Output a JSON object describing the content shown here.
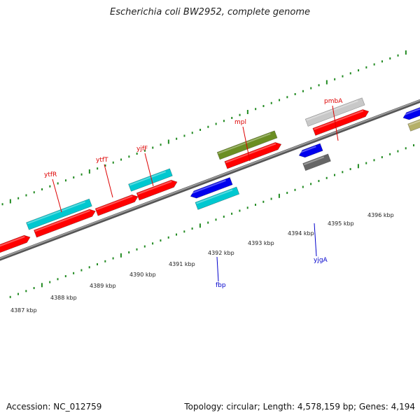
{
  "title": "Escherichia coli BW2952, complete genome",
  "footer": {
    "accession": "Accession: NC_012759",
    "summary": "Topology: circular; Length: 4,578,159 bp; Genes: 4,194"
  },
  "scale_labels": [
    "4387 kbp",
    "4388 kbp",
    "4389 kbp",
    "4390 kbp",
    "4391 kbp",
    "4392 kbp",
    "4393 kbp",
    "4394 kbp",
    "4395 kbp",
    "4396 kbp"
  ],
  "gene_labels": [
    {
      "name": "ytfR",
      "strand": "plus",
      "color": "#dd0000"
    },
    {
      "name": "ytfT",
      "strand": "plus",
      "color": "#dd0000"
    },
    {
      "name": "yjfF",
      "strand": "plus",
      "color": "#dd0000"
    },
    {
      "name": "mpl",
      "strand": "plus",
      "color": "#dd0000"
    },
    {
      "name": "pmbA",
      "strand": "plus",
      "color": "#dd0000"
    },
    {
      "name": "fbp",
      "strand": "minus",
      "color": "#0000cc"
    },
    {
      "name": "yjgA",
      "strand": "minus",
      "color": "#0000cc"
    }
  ],
  "colors": {
    "cds_plus": "#ff0000",
    "cds_minus": "#0000ee",
    "cyan_feature": "#00c8d0",
    "olive_feature": "#6b8e23",
    "grey_feature": "#c8c8c8",
    "dark_grey_feature": "#666666",
    "khaki_feature": "#b5b068",
    "tick_green": "#228b22",
    "axis_grey": "#808080"
  }
}
